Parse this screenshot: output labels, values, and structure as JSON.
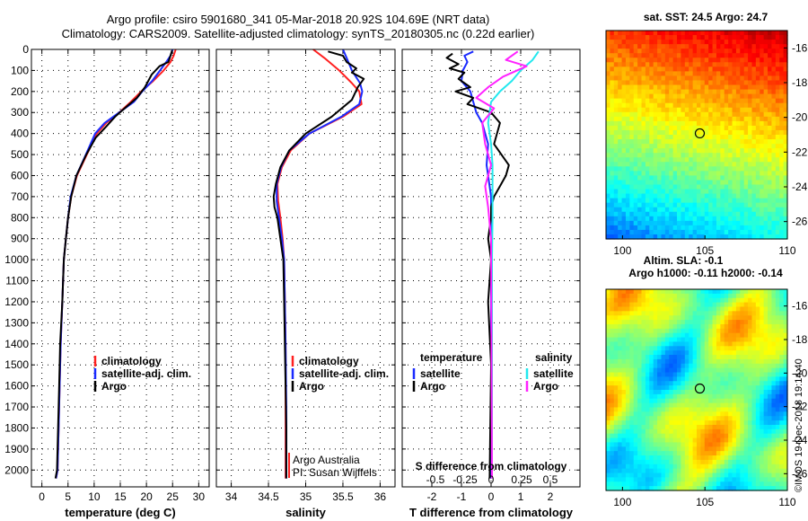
{
  "header": {
    "line1": "Argo profile: csiro 5901680_341 05-Mar-2018 20.92S 104.69E (NRT data)",
    "line2": "Climatology: CARS2009. Satellite-adjusted climatology: synTS_20180305.nc (0.22d earlier)"
  },
  "colors": {
    "climatology": "#ff2020",
    "satellite": "#1a2aff",
    "argo": "#000000",
    "sal_satellite": "#22e8ee",
    "sal_argo": "#ff22ff"
  },
  "credit": "©IMOS 19-Dec-2018 19:14:40",
  "chart_data": [
    {
      "id": "temperature",
      "type": "line",
      "xlabel": "temperature (deg C)",
      "ylabel": "",
      "xlim": [
        -2,
        32
      ],
      "ylim": [
        2080,
        0
      ],
      "xticks": [
        0,
        5,
        10,
        15,
        20,
        25,
        30
      ],
      "yticks": [
        0,
        100,
        200,
        300,
        400,
        500,
        600,
        700,
        800,
        900,
        1000,
        1100,
        1200,
        1300,
        1400,
        1500,
        1600,
        1700,
        1800,
        1900,
        2000
      ],
      "y_inverted": true,
      "grid": true,
      "legend": [
        "climatology",
        "satellite-adj. clim.",
        "Argo"
      ],
      "series": [
        {
          "name": "climatology",
          "color_key": "climatology",
          "x": [
            25.6,
            25.2,
            24.6,
            23.3,
            21.3,
            19.0,
            17.0,
            14.8,
            12.3,
            10.5,
            8.6,
            6.7,
            5.6,
            5.0,
            4.6,
            4.2,
            3.9,
            3.6,
            3.4,
            3.2,
            3.0,
            2.7
          ],
          "y": [
            0,
            30,
            60,
            100,
            150,
            200,
            250,
            300,
            350,
            400,
            500,
            600,
            700,
            800,
            900,
            1000,
            1200,
            1400,
            1600,
            1800,
            2000,
            2040
          ]
        },
        {
          "name": "satellite-adj. clim.",
          "color_key": "satellite",
          "x": [
            25.0,
            24.6,
            23.8,
            22.6,
            21.1,
            19.2,
            17.6,
            14.8,
            12.0,
            10.2,
            8.4,
            6.6,
            5.5,
            5.0,
            4.6,
            4.2,
            3.9,
            3.6,
            3.4,
            3.2,
            3.0,
            2.7
          ],
          "y": [
            0,
            30,
            60,
            100,
            150,
            200,
            250,
            300,
            350,
            400,
            500,
            600,
            700,
            800,
            900,
            1000,
            1200,
            1400,
            1600,
            1800,
            2000,
            2040
          ]
        },
        {
          "name": "Argo",
          "color_key": "argo",
          "x": [
            24.9,
            24.6,
            24.2,
            22.5,
            21.0,
            19.7,
            18.2,
            16.3,
            14.0,
            12.2,
            10.3,
            8.5,
            6.6,
            5.6,
            5.0,
            4.6,
            4.2,
            3.9,
            3.5,
            3.3,
            3.1,
            2.9,
            2.6
          ],
          "y": [
            5,
            30,
            60,
            80,
            120,
            180,
            230,
            270,
            320,
            370,
            420,
            500,
            600,
            700,
            800,
            900,
            1000,
            1200,
            1400,
            1600,
            1800,
            2000,
            2040
          ]
        }
      ]
    },
    {
      "id": "salinity",
      "type": "line",
      "xlabel": "salinity",
      "xlim": [
        33.8,
        36.2
      ],
      "ylim": [
        2080,
        0
      ],
      "xticks": [
        34,
        34.5,
        35,
        35.5,
        36
      ],
      "y_inverted": true,
      "grid": true,
      "legend": [
        "climatology",
        "satellite-adj. clim.",
        "Argo"
      ],
      "annotation": [
        "Argo Australia",
        "PI: Susan Wijffels"
      ],
      "series": [
        {
          "name": "climatology",
          "color_key": "climatology",
          "x": [
            35.1,
            35.25,
            35.45,
            35.62,
            35.72,
            35.75,
            35.5,
            35.05,
            34.8,
            34.68,
            34.62,
            34.63,
            34.66,
            34.69,
            34.71,
            34.72,
            34.73,
            34.73,
            34.73
          ],
          "y": [
            0,
            40,
            100,
            160,
            200,
            260,
            320,
            400,
            480,
            560,
            640,
            720,
            800,
            900,
            1000,
            1200,
            1400,
            1700,
            2040
          ]
        },
        {
          "name": "satellite-adj. clim.",
          "color_key": "satellite",
          "x": [
            35.5,
            35.55,
            35.62,
            35.73,
            35.76,
            35.72,
            35.48,
            35.05,
            34.78,
            34.67,
            34.61,
            34.61,
            34.64,
            34.68,
            34.71,
            34.72,
            34.73,
            34.74,
            34.74
          ],
          "y": [
            0,
            40,
            100,
            160,
            200,
            260,
            320,
            400,
            480,
            560,
            640,
            720,
            800,
            900,
            1000,
            1200,
            1400,
            1700,
            2040
          ]
        },
        {
          "name": "Argo",
          "color_key": "argo",
          "x": [
            35.3,
            35.5,
            35.55,
            35.68,
            35.62,
            35.78,
            35.7,
            35.62,
            35.35,
            35.0,
            34.78,
            34.66,
            34.6,
            34.57,
            34.58,
            34.62,
            34.66,
            34.7,
            34.71,
            34.72,
            34.73,
            34.74,
            34.74
          ],
          "y": [
            10,
            30,
            60,
            90,
            110,
            140,
            180,
            240,
            320,
            400,
            480,
            560,
            640,
            700,
            750,
            800,
            900,
            1000,
            1200,
            1400,
            1600,
            1800,
            2040
          ]
        }
      ]
    },
    {
      "id": "difference",
      "type": "line",
      "xlabel": "T difference from climatology",
      "xlabel_top": "S difference from climatology",
      "xlim": [
        -3,
        3
      ],
      "ylim": [
        2080,
        0
      ],
      "xticks": [
        -2,
        -1,
        0,
        1,
        2
      ],
      "xticks_top": [
        "-0.5",
        "-0.25",
        "0",
        "0.25",
        "0.5"
      ],
      "y_inverted": true,
      "grid": true,
      "legend": {
        "temperature": {
          "title": "temperature",
          "items": [
            "satellite",
            "Argo"
          ]
        },
        "salinity": {
          "title": "salinity",
          "items": [
            "satellite",
            "Argo"
          ]
        }
      },
      "series": [
        {
          "name": "satellite",
          "group": "temperature",
          "color_key": "satellite",
          "x": [
            -0.6,
            -0.9,
            -0.8,
            -0.95,
            -1.0,
            -0.7,
            -0.6,
            -0.5,
            -0.3,
            -0.2,
            -0.1,
            -0.15,
            -0.1,
            0.0,
            0.0,
            0.0,
            0.0
          ],
          "y": [
            10,
            30,
            60,
            100,
            150,
            200,
            250,
            300,
            350,
            400,
            450,
            550,
            600,
            700,
            800,
            1000,
            2040
          ]
        },
        {
          "name": "Argo",
          "group": "temperature",
          "color_key": "argo",
          "x": [
            -1.3,
            -1.5,
            -1.1,
            -1.4,
            -0.9,
            -1.1,
            -0.9,
            -0.7,
            -1.2,
            -0.6,
            -0.8,
            0.0,
            0.3,
            0.1,
            0.6,
            0.5,
            0.3,
            0.1,
            0.0,
            0.0,
            -0.1,
            0.0,
            -0.1,
            0.0,
            -0.05
          ],
          "y": [
            20,
            40,
            70,
            90,
            110,
            140,
            160,
            180,
            200,
            230,
            260,
            300,
            350,
            450,
            550,
            600,
            650,
            700,
            750,
            800,
            900,
            1000,
            1200,
            1500,
            2040
          ]
        },
        {
          "name": "satellite",
          "group": "salinity",
          "color_key": "sal_satellite",
          "x": [
            1.6,
            1.4,
            1.0,
            0.7,
            0.3,
            0.0,
            -0.1,
            0.0,
            0.05,
            0.05,
            0.05,
            0.03,
            0.03
          ],
          "y": [
            10,
            50,
            100,
            150,
            200,
            250,
            350,
            450,
            550,
            650,
            800,
            1000,
            2040
          ]
        },
        {
          "name": "Argo",
          "group": "salinity",
          "color_key": "sal_argo",
          "x": [
            0.9,
            0.5,
            1.2,
            0.4,
            -0.1,
            -0.5,
            0.1,
            -0.3,
            -0.2,
            0.0,
            -0.2,
            -0.1,
            0.0,
            0.03
          ],
          "y": [
            10,
            50,
            80,
            130,
            180,
            230,
            280,
            350,
            450,
            550,
            650,
            750,
            900,
            2040
          ]
        }
      ]
    },
    {
      "id": "sst_map",
      "type": "heatmap",
      "title": "sat. SST: 24.5 Argo: 24.7",
      "xlim": [
        99,
        110
      ],
      "ylim": [
        -27,
        -15
      ],
      "xticks": [
        100,
        105,
        110
      ],
      "yticks": [
        -16,
        -18,
        -20,
        -22,
        -24,
        -26
      ],
      "marker": {
        "lon": 104.69,
        "lat": -20.92
      }
    },
    {
      "id": "sla_map",
      "type": "heatmap",
      "title_lines": [
        "Altim. SLA: -0.1",
        "Argo h1000: -0.11 h2000: -0.14"
      ],
      "xlim": [
        99,
        110
      ],
      "ylim": [
        -27,
        -15
      ],
      "xticks": [
        100,
        105,
        110
      ],
      "yticks": [
        -16,
        -18,
        -20,
        -22,
        -24,
        -26
      ],
      "marker": {
        "lon": 104.69,
        "lat": -20.92
      }
    }
  ]
}
